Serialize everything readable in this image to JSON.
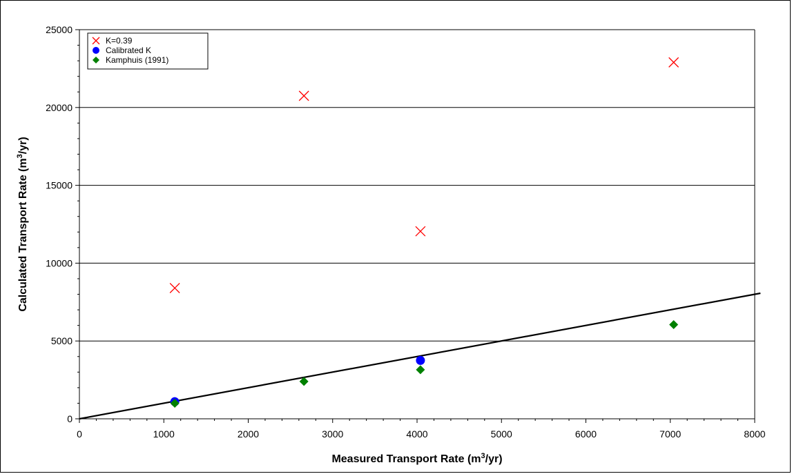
{
  "chart_data": {
    "type": "scatter",
    "xlabel": "Measured Transport Rate (m3/yr)",
    "xlabel_parts": [
      "Measured Transport Rate (m",
      "3",
      "/yr)"
    ],
    "ylabel": "Calculated Transport Rate (m3/yr)",
    "ylabel_parts": [
      "Calculated Transport Rate (m",
      "3",
      "/yr)"
    ],
    "xlim": [
      0,
      8000
    ],
    "ylim": [
      0,
      25000
    ],
    "xticks": [
      0,
      1000,
      2000,
      3000,
      4000,
      5000,
      6000,
      7000,
      8000
    ],
    "yticks": [
      0,
      5000,
      10000,
      15000,
      20000,
      25000
    ],
    "grid": "horizontal",
    "legend_position": "top-left",
    "series": [
      {
        "name": "K=0.39",
        "marker": "x",
        "color": "#ff0000",
        "points": [
          [
            1130,
            8400
          ],
          [
            2660,
            20750
          ],
          [
            4040,
            12050
          ],
          [
            7040,
            22900
          ]
        ]
      },
      {
        "name": "Calibrated K",
        "marker": "circle",
        "color": "#0000ff",
        "points": [
          [
            1130,
            1100
          ],
          [
            4040,
            3750
          ]
        ]
      },
      {
        "name": "Kamphuis (1991)",
        "marker": "diamond",
        "color": "#008000",
        "points": [
          [
            1130,
            1000
          ],
          [
            2660,
            2400
          ],
          [
            4040,
            3150
          ],
          [
            7040,
            6050
          ]
        ]
      }
    ],
    "reference_line": {
      "type": "y=x",
      "color": "#000000",
      "from": [
        0,
        0
      ],
      "to": [
        8000,
        8000
      ]
    }
  }
}
